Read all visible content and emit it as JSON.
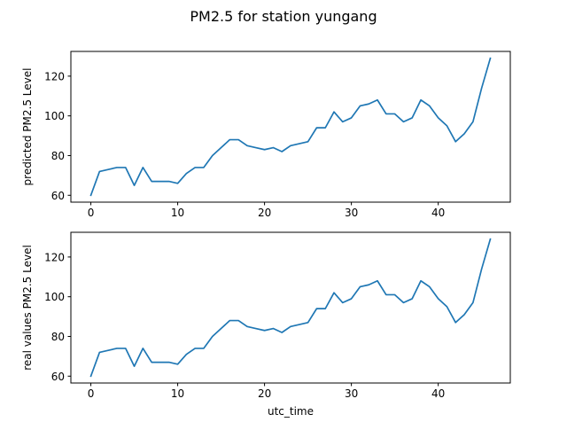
{
  "title": "PM2.5 for station yungang",
  "colors": {
    "series": "#1f77b4",
    "axes": "#000000",
    "background": "#ffffff"
  },
  "chart_data": [
    {
      "type": "line",
      "title": "",
      "xlabel": "",
      "ylabel": "predicted PM2.5 Level",
      "xlim": [
        -2.3,
        48.3
      ],
      "ylim": [
        56.55,
        132.45
      ],
      "xticks": [
        0,
        10,
        20,
        30,
        40
      ],
      "yticks": [
        60,
        80,
        100,
        120
      ],
      "grid": false,
      "series": [
        {
          "x": [
            0,
            1,
            2,
            3,
            4,
            5,
            6,
            7,
            8,
            9,
            10,
            11,
            12,
            13,
            14,
            15,
            16,
            17,
            18,
            19,
            20,
            21,
            22,
            23,
            24,
            25,
            26,
            27,
            28,
            29,
            30,
            31,
            32,
            33,
            34,
            35,
            36,
            37,
            38,
            39,
            40,
            41,
            42,
            43,
            44,
            45,
            46
          ],
          "y": [
            60,
            72,
            73,
            74,
            74,
            65,
            74,
            67,
            67,
            67,
            66,
            71,
            74,
            74,
            80,
            84,
            88,
            88,
            85,
            84,
            83,
            84,
            82,
            85,
            86,
            87,
            94,
            94,
            102,
            97,
            99,
            105,
            106,
            108,
            101,
            101,
            97,
            99,
            108,
            105,
            99,
            95,
            87,
            91,
            97,
            114,
            129
          ]
        }
      ]
    },
    {
      "type": "line",
      "title": "",
      "xlabel": "utc_time",
      "ylabel": "real values PM2.5 Level",
      "xlim": [
        -2.3,
        48.3
      ],
      "ylim": [
        56.55,
        132.45
      ],
      "xticks": [
        0,
        10,
        20,
        30,
        40
      ],
      "yticks": [
        60,
        80,
        100,
        120
      ],
      "grid": false,
      "series": [
        {
          "x": [
            0,
            1,
            2,
            3,
            4,
            5,
            6,
            7,
            8,
            9,
            10,
            11,
            12,
            13,
            14,
            15,
            16,
            17,
            18,
            19,
            20,
            21,
            22,
            23,
            24,
            25,
            26,
            27,
            28,
            29,
            30,
            31,
            32,
            33,
            34,
            35,
            36,
            37,
            38,
            39,
            40,
            41,
            42,
            43,
            44,
            45,
            46
          ],
          "y": [
            60,
            72,
            73,
            74,
            74,
            65,
            74,
            67,
            67,
            67,
            66,
            71,
            74,
            74,
            80,
            84,
            88,
            88,
            85,
            84,
            83,
            84,
            82,
            85,
            86,
            87,
            94,
            94,
            102,
            97,
            99,
            105,
            106,
            108,
            101,
            101,
            97,
            99,
            108,
            105,
            99,
            95,
            87,
            91,
            97,
            114,
            129
          ]
        }
      ]
    }
  ]
}
